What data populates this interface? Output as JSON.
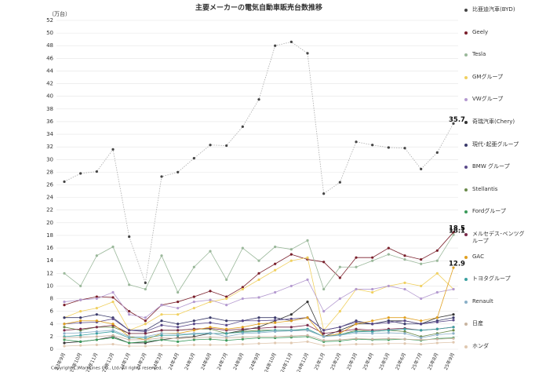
{
  "chart_data": {
    "type": "line",
    "title": "主要メーカーの電気自動車販売台数推移",
    "y_label": "（万台）",
    "footnote": "Copyright(C)MarkLines CO., Ltd. All rights reserved.",
    "categories": [
      "23年9月",
      "23年10月",
      "23年11月",
      "23年12月",
      "24年1月",
      "24年2月",
      "24年3月",
      "24年4月",
      "24年5月",
      "24年6月",
      "24年7月",
      "24年8月",
      "24年9月",
      "24年10月",
      "24年11月",
      "24年12月",
      "25年1月",
      "25年2月",
      "25年3月",
      "25年4月",
      "25年5月",
      "25年6月",
      "25年7月",
      "25年8月",
      "25年9月"
    ],
    "ylim": [
      0,
      52
    ],
    "yticks": [
      0,
      2,
      4,
      6,
      8,
      10,
      12,
      14,
      16,
      18,
      20,
      22,
      24,
      26,
      28,
      30,
      32,
      34,
      36,
      38,
      40,
      42,
      44,
      46,
      48,
      50,
      52
    ],
    "grid": true,
    "legend": "right",
    "series": [
      {
        "name": "比亜迪汽車(BYD)",
        "color": "#444444",
        "dashed": true,
        "label_last": true,
        "values": [
          26.5,
          27.8,
          28.1,
          31.6,
          17.8,
          10.5,
          27.3,
          28,
          30.2,
          32.3,
          32.2,
          35.2,
          39.5,
          48,
          48.6,
          46.8,
          24.6,
          26.4,
          32.8,
          32.3,
          31.9,
          31.8,
          28.5,
          31.1,
          35.7
        ]
      },
      {
        "name": "Geely",
        "color": "#7a1f2b",
        "label_last": true,
        "values": [
          7,
          7.8,
          8.3,
          8.2,
          6,
          4.5,
          7,
          7.5,
          8.3,
          9.2,
          8.3,
          9.8,
          12,
          13.5,
          15,
          14.2,
          13.8,
          11.3,
          14.5,
          14.5,
          16,
          14.8,
          14.2,
          15.6,
          18.5
        ]
      },
      {
        "name": "Tesla",
        "color": "#9ab89a",
        "label_last": true,
        "values": [
          12,
          10,
          14.8,
          16.2,
          10.2,
          9.5,
          14.8,
          9,
          13,
          15.5,
          11,
          16,
          14,
          16.2,
          15.8,
          17.2,
          9.5,
          13,
          13,
          14,
          15,
          14.2,
          13.5,
          14,
          18.1
        ]
      },
      {
        "name": "GMグループ",
        "color": "#f0d060",
        "values": [
          5,
          6,
          6.5,
          7.5,
          3,
          4,
          5.5,
          5.5,
          6.5,
          7.5,
          8,
          9.5,
          11,
          12.5,
          14,
          14.5,
          3,
          6,
          9.5,
          9,
          10,
          10.5,
          10,
          12,
          9.5
        ]
      },
      {
        "name": "VWグループ",
        "color": "#b49ad0",
        "values": [
          7.5,
          7.8,
          8,
          9,
          5.5,
          5,
          7,
          6.5,
          7.5,
          7.8,
          7,
          8,
          8.2,
          9,
          10,
          11,
          6,
          8,
          9.5,
          9.5,
          10,
          9.5,
          8,
          9,
          9.5
        ]
      },
      {
        "name": "奇瑞汽車(Chery)",
        "color": "#333333",
        "values": [
          1,
          1.2,
          1.5,
          2,
          1,
          1,
          1.5,
          1.8,
          2,
          2.5,
          2.5,
          3,
          3.5,
          4.5,
          5.5,
          7.5,
          2,
          3,
          4,
          4,
          4.5,
          4.5,
          4,
          5,
          5.5
        ]
      },
      {
        "name": "現代･起亜グループ",
        "color": "#3a3a6a",
        "values": [
          5,
          5,
          5.5,
          5,
          3,
          3,
          4.5,
          4,
          4.5,
          5,
          4.5,
          4.5,
          5,
          5,
          4.5,
          5,
          3,
          3.5,
          4.5,
          4,
          4.5,
          4,
          4,
          4.5,
          5
        ]
      },
      {
        "name": "BMW グループ",
        "color": "#5a4a8a",
        "values": [
          4,
          4.2,
          4.3,
          4.8,
          3,
          2.8,
          3.8,
          3.5,
          4,
          4.2,
          3.8,
          4.5,
          4.5,
          4.6,
          4.8,
          5,
          3,
          3.5,
          4.3,
          4,
          4.2,
          4.5,
          4,
          4.3,
          4.6
        ]
      },
      {
        "name": "Stellantis",
        "color": "#6a8a4a",
        "values": [
          3.5,
          3,
          3.5,
          3.5,
          2.5,
          2.5,
          3,
          3,
          3.2,
          3.2,
          2.5,
          2.8,
          3,
          3,
          3,
          3,
          2,
          2.3,
          3,
          2.8,
          3,
          2.8,
          2,
          2.5,
          3
        ]
      },
      {
        "name": "Fordグループ",
        "color": "#3a9a5a",
        "values": [
          1.5,
          1.2,
          1.5,
          1.8,
          1,
          1.2,
          1.5,
          1.2,
          1.5,
          1.6,
          1.4,
          1.6,
          1.8,
          1.8,
          1.9,
          2,
          1.2,
          1.3,
          1.6,
          1.5,
          1.5,
          1.6,
          1.4,
          1.7,
          1.8
        ]
      },
      {
        "name": "メルセデス･ベンツグループ",
        "color": "#7a2a4a",
        "values": [
          3,
          3.2,
          3.5,
          3.8,
          2.5,
          2.5,
          3,
          3,
          3.2,
          3.3,
          3,
          3.2,
          3.3,
          3.5,
          3.5,
          3.8,
          2.5,
          2.8,
          3.2,
          3,
          3.2,
          3.3,
          3,
          3.2,
          3.5
        ]
      },
      {
        "name": "GAC",
        "color": "#e0a020",
        "label_last": true,
        "values": [
          4,
          4.5,
          4.5,
          4,
          2,
          1.5,
          2.5,
          2.5,
          3,
          3.5,
          3.2,
          3.5,
          4,
          4.2,
          4.5,
          5,
          2,
          2.5,
          4,
          4.5,
          5,
          5,
          4.5,
          5,
          12.9
        ]
      },
      {
        "name": "トヨタグループ",
        "color": "#3aa0a0",
        "values": [
          2,
          2.2,
          2.5,
          2.8,
          1.8,
          1.8,
          2.2,
          2.2,
          2.4,
          2.5,
          2.5,
          2.7,
          2.8,
          3,
          3,
          3.2,
          2,
          2.3,
          2.8,
          2.8,
          3,
          3.2,
          3,
          3.2,
          3.5
        ]
      },
      {
        "name": "Renault",
        "color": "#8ab0c8",
        "values": [
          2.5,
          2.6,
          2.8,
          3,
          2,
          2,
          2.5,
          2.4,
          2.5,
          2.6,
          2,
          2.5,
          2.6,
          2.8,
          2.9,
          3,
          2,
          2.2,
          2.6,
          2.5,
          2.6,
          2.5,
          1.8,
          2.3,
          2.5
        ]
      },
      {
        "name": "日産",
        "color": "#c8b4a0",
        "values": [
          1.8,
          1.9,
          2,
          2.2,
          1.5,
          1.5,
          1.8,
          1.7,
          1.8,
          1.9,
          1.8,
          1.9,
          2,
          2,
          2.1,
          2.2,
          1.4,
          1.5,
          1.7,
          1.6,
          1.7,
          1.6,
          1.5,
          1.6,
          1.7
        ]
      },
      {
        "name": "ホンダ",
        "color": "#e0c8b0",
        "values": [
          0.5,
          0.6,
          0.7,
          0.8,
          0.5,
          0.5,
          0.6,
          0.6,
          0.7,
          0.7,
          0.7,
          0.8,
          0.9,
          1,
          1,
          1.2,
          0.6,
          0.7,
          0.8,
          0.8,
          0.9,
          0.9,
          0.8,
          1,
          1.1
        ]
      }
    ]
  }
}
